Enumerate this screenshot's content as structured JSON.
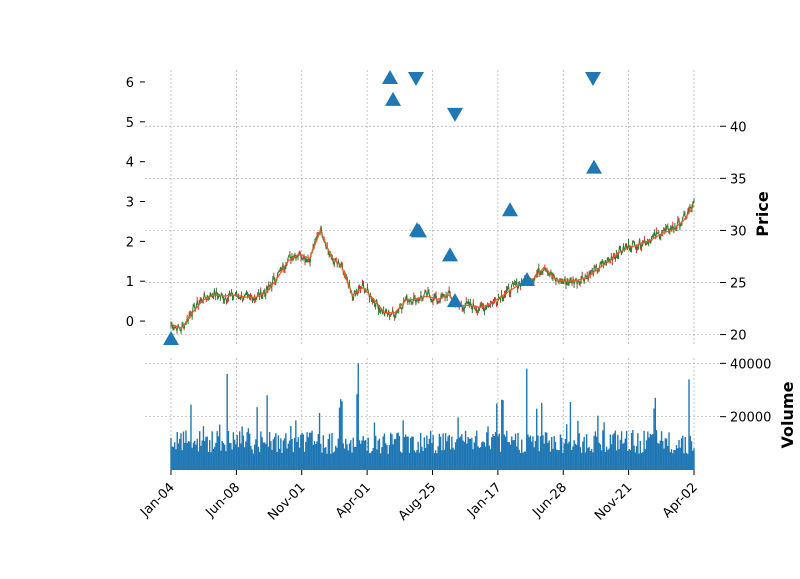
{
  "chart_data": {
    "type": "candlestick",
    "panels": [
      {
        "name": "price",
        "ylabel": "Price",
        "ylim": [
          19,
          45.4
        ],
        "yticks": [
          20,
          25,
          30,
          35,
          40
        ],
        "secondary_yticks": [
          0,
          1,
          2,
          3,
          4,
          5,
          6
        ],
        "secondary_ylim": [
          -0.6,
          6.3
        ],
        "grid": true,
        "series": [
          {
            "name": "close",
            "color": "#2e7d32",
            "x": [
              "Jan-04",
              "Feb-05",
              "Mar-11",
              "Apr-15",
              "May-20",
              "Jun-08",
              "Jul-13",
              "Aug-17",
              "Sep-21",
              "Nov-01",
              "Dec-06",
              "Jan-10",
              "Feb-14",
              "Mar-14",
              "Apr-01",
              "Apr-20",
              "May-10",
              "May-31",
              "Jun-21",
              "Jul-12",
              "Aug-02",
              "Aug-25",
              "Sep-15",
              "Oct-06",
              "Oct-27",
              "Nov-17",
              "Dec-08",
              "Dec-29",
              "Jan-17",
              "Feb-07",
              "Feb-28",
              "Mar-21",
              "Apr-11",
              "May-02",
              "May-23",
              "Jun-13",
              "Jun-28",
              "Jul-19",
              "Aug-09",
              "Aug-30",
              "Sep-20",
              "Oct-11",
              "Nov-01",
              "Nov-21",
              "Dec-12",
              "Jan-02",
              "Jan-23",
              "Feb-13",
              "Mar-06",
              "Apr-02"
            ],
            "values": [
              20.9,
              20.5,
              22.3,
              23.5,
              23.9,
              23.6,
              23.8,
              23.5,
              23.6,
              24.2,
              25.7,
              27.3,
              27.8,
              27.2,
              30.3,
              27.3,
              26.4,
              23.6,
              24.6,
              23.3,
              22.0,
              22.0,
              23.4,
              23.4,
              23.8,
              23.3,
              23.9,
              22.7,
              22.8,
              22.5,
              23.0,
              23.8,
              24.5,
              25.1,
              25.5,
              26.6,
              25.2,
              25.1,
              25.2,
              25.6,
              26.4,
              27.1,
              28.0,
              28.5,
              28.8,
              29.2,
              29.8,
              30.2,
              31.0,
              32.6
            ]
          },
          {
            "name": "moving average",
            "color": "#ff5722",
            "values": [
              21.0,
              20.6,
              22.1,
              23.3,
              23.8,
              23.7,
              23.8,
              23.6,
              23.6,
              24.1,
              25.5,
              27.1,
              27.7,
              27.3,
              30.0,
              27.5,
              26.5,
              23.8,
              24.5,
              23.4,
              22.1,
              22.1,
              23.3,
              23.4,
              23.7,
              23.4,
              23.8,
              22.8,
              22.8,
              22.6,
              23.0,
              23.7,
              24.4,
              25.0,
              25.4,
              26.5,
              25.3,
              25.1,
              25.2,
              25.5,
              26.3,
              27.0,
              27.9,
              28.4,
              28.7,
              29.1,
              29.7,
              30.1,
              30.9,
              32.4
            ]
          }
        ],
        "markers": {
          "color": "#1f77b4",
          "buy": [
            {
              "x": "Jan-04",
              "y": -0.45
            },
            {
              "x": "Apr-30",
              "y": 6.1
            },
            {
              "x": "May-02",
              "y": 5.55
            },
            {
              "x": "Jun-08",
              "y": 2.28
            },
            {
              "x": "Jun-09",
              "y": 2.25
            },
            {
              "x": "Aug-20",
              "y": 1.65
            },
            {
              "x": "Aug-25",
              "y": 0.5
            },
            {
              "x": "Jan-28",
              "y": 2.78
            },
            {
              "x": "Feb-25",
              "y": 1.03
            },
            {
              "x": "Aug-20",
              "y": 3.85
            }
          ],
          "sell": [
            {
              "x": "Jun-07",
              "y": 6.1
            },
            {
              "x": "Aug-25",
              "y": 5.2
            },
            {
              "x": "Aug-20",
              "y": 6.1
            }
          ]
        }
      },
      {
        "name": "volume",
        "ylabel": "Volume",
        "ylim": [
          0,
          42000
        ],
        "yticks": [
          20000,
          40000
        ],
        "grid": true,
        "color": "#1f77b4"
      }
    ],
    "xticks": [
      "Jan-04",
      "Jun-08",
      "Nov-01",
      "Apr-01",
      "Aug-25",
      "Jan-17",
      "Jun-28",
      "Nov-21",
      "Apr-02"
    ],
    "title": "",
    "xlabel": ""
  }
}
